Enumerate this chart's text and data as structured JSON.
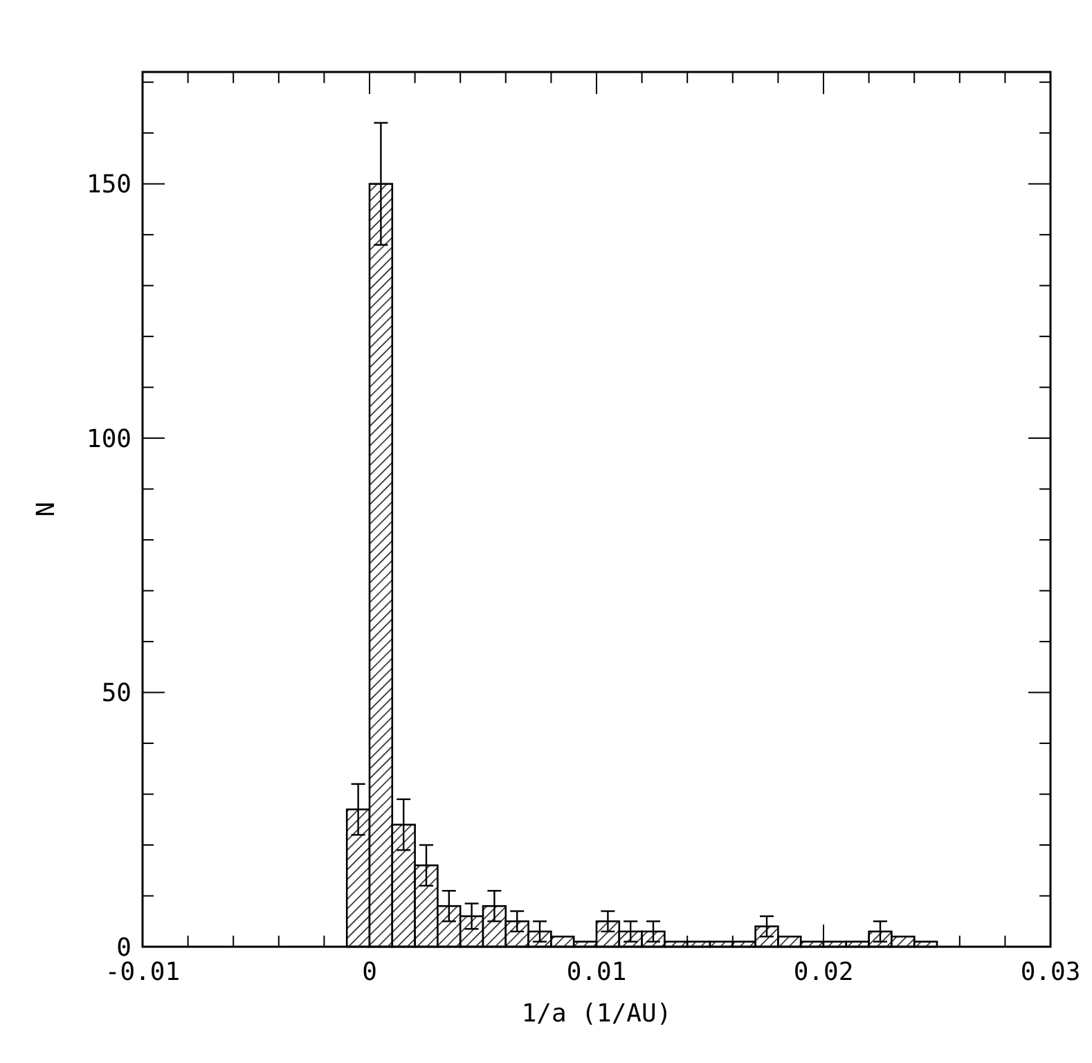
{
  "chart_data": {
    "type": "histogram",
    "xlabel": "1/a (1/AU)",
    "ylabel": "N",
    "bins": [
      -0.001,
      0,
      0.001,
      0.002,
      0.003,
      0.004,
      0.005,
      0.006,
      0.007,
      0.008,
      0.009,
      0.01,
      0.011,
      0.012,
      0.013,
      0.014,
      0.015,
      0.016,
      0.017,
      0.018,
      0.019,
      0.02,
      0.021,
      0.022,
      0.023,
      0.024,
      0.025
    ],
    "values": [
      27,
      150,
      24,
      16,
      8,
      6,
      8,
      5,
      3,
      2,
      1,
      5,
      3,
      3,
      1,
      1,
      1,
      1,
      4,
      2,
      1,
      1,
      1,
      3,
      2,
      1
    ],
    "errors": [
      5,
      12,
      5,
      4,
      3,
      2.5,
      3,
      2,
      2,
      null,
      null,
      2,
      2,
      2,
      null,
      null,
      null,
      null,
      2,
      null,
      null,
      null,
      null,
      2,
      null,
      null
    ],
    "color": "#000000",
    "xlim": [
      -0.01,
      0.03
    ],
    "xticks": [
      -0.01,
      {
        "value": -0.008,
        "label": null
      },
      {
        "value": -0.006,
        "label": null
      },
      {
        "value": -0.004,
        "label": null
      },
      {
        "value": -0.002,
        "label": null
      },
      0,
      {
        "value": 0.002,
        "label": null
      },
      {
        "value": 0.004,
        "label": null
      },
      {
        "value": 0.006,
        "label": null
      },
      {
        "value": 0.008,
        "label": null
      },
      0.01,
      {
        "value": 0.012,
        "label": null
      },
      {
        "value": 0.014,
        "label": null
      },
      {
        "value": 0.016,
        "label": null
      },
      {
        "value": 0.018,
        "label": null
      },
      0.02,
      {
        "value": 0.022,
        "label": null
      },
      {
        "value": 0.024,
        "label": null
      },
      {
        "value": 0.026,
        "label": null
      },
      {
        "value": 0.028,
        "label": null
      },
      0.03
    ],
    "ylim": [
      0,
      172
    ],
    "yticks": [
      0,
      {
        "value": 10,
        "label": null
      },
      {
        "value": 20,
        "label": null
      },
      {
        "value": 30,
        "label": null
      },
      {
        "value": 40,
        "label": null
      },
      50,
      {
        "value": 60,
        "label": null
      },
      {
        "value": 70,
        "label": null
      },
      {
        "value": 80,
        "label": null
      },
      {
        "value": 90,
        "label": null
      },
      100,
      {
        "value": 110,
        "label": null
      },
      {
        "value": 120,
        "label": null
      },
      {
        "value": 130,
        "label": null
      },
      {
        "value": 140,
        "label": null
      },
      150,
      {
        "value": 160,
        "label": null
      },
      {
        "value": 170,
        "label": null
      }
    ],
    "grid": false
  }
}
